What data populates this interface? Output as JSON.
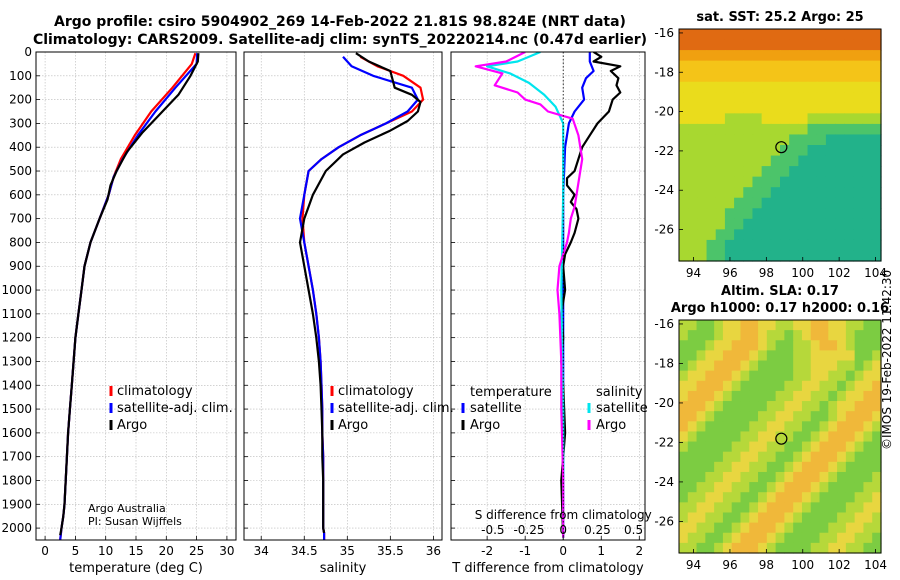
{
  "titles": {
    "line1": "Argo profile: csiro 5904902_269 14-Feb-2022 21.81S 98.824E (NRT data)",
    "line2": "Climatology: CARS2009. Satellite-adj clim: synTS_20220214.nc (0.47d earlier)"
  },
  "colors": {
    "climatology": "#ff0000",
    "satellite": "#0000ff",
    "argo": "#000000",
    "salinity_satellite": "#00e5ee",
    "salinity_argo": "#ff00ff",
    "grid": "#b8b8b8"
  },
  "credits": {
    "line1": "Argo Australia",
    "line2": "PI: Susan Wijffels"
  },
  "timestamp": "©IMOS 19-Feb-2022 11:42:30",
  "chart_data": [
    {
      "type": "line",
      "name": "temperature-profile",
      "xlabel": "temperature (deg C)",
      "xlim": [
        -1.5,
        31.5
      ],
      "ylim": [
        0,
        2050
      ],
      "y_reversed": true,
      "xticks": [
        0,
        5,
        10,
        15,
        20,
        25,
        30
      ],
      "yticks": [
        0,
        100,
        200,
        300,
        400,
        500,
        600,
        700,
        800,
        900,
        1000,
        1100,
        1200,
        1300,
        1400,
        1500,
        1600,
        1700,
        1800,
        1900,
        2000
      ],
      "legend": [
        "climatology",
        "satellite-adj. clim.",
        "Argo"
      ],
      "series": [
        {
          "name": "climatology",
          "color_key": "climatology",
          "x": [
            24.8,
            24.2,
            21.0,
            17.5,
            14.8,
            12.5,
            11.3,
            10.5,
            9.0,
            7.5,
            6.5,
            6.0,
            5.5,
            5.0,
            4.7,
            4.4,
            4.1,
            3.8,
            3.6,
            3.4,
            3.2,
            3.0,
            2.7,
            2.5
          ],
          "y": [
            5,
            50,
            150,
            250,
            350,
            450,
            525,
            600,
            700,
            800,
            900,
            1000,
            1100,
            1200,
            1300,
            1400,
            1500,
            1600,
            1700,
            1800,
            1900,
            1950,
            2000,
            2050
          ]
        },
        {
          "name": "satellite-adj. clim.",
          "color_key": "satellite",
          "x": [
            25.1,
            25.0,
            21.5,
            18.2,
            15.3,
            12.8,
            11.3,
            10.5,
            9.0,
            7.5,
            6.5,
            6.0,
            5.5,
            5.0,
            4.7,
            4.4,
            4.1,
            3.8,
            3.6,
            3.4,
            3.2,
            3.0,
            2.7,
            2.5
          ],
          "y": [
            5,
            50,
            150,
            250,
            350,
            450,
            525,
            600,
            700,
            800,
            900,
            1000,
            1100,
            1200,
            1300,
            1400,
            1500,
            1600,
            1700,
            1800,
            1900,
            1950,
            2000,
            2050
          ]
        },
        {
          "name": "Argo",
          "color_key": "argo",
          "x": [
            25.3,
            25.2,
            24.0,
            22.0,
            19.0,
            16.0,
            13.5,
            11.8,
            10.8,
            10.3,
            9.0,
            7.5,
            6.5,
            6.0,
            5.5,
            5.0,
            4.7,
            4.4,
            4.1,
            3.8,
            3.6,
            3.4,
            3.2,
            3.0,
            2.7,
            2.5
          ],
          "y": [
            5,
            40,
            100,
            180,
            260,
            340,
            420,
            500,
            560,
            620,
            700,
            800,
            900,
            1000,
            1100,
            1200,
            1300,
            1400,
            1500,
            1600,
            1700,
            1800,
            1900,
            1950,
            2000,
            2030
          ]
        }
      ]
    },
    {
      "type": "line",
      "name": "salinity-profile",
      "xlabel": "salinity",
      "xlim": [
        33.8,
        36.1
      ],
      "ylim": [
        0,
        2050
      ],
      "y_reversed": true,
      "xticks": [
        34,
        34.5,
        35,
        35.5,
        36
      ],
      "legend": [
        "climatology",
        "satellite-adj. clim.",
        "Argo"
      ],
      "series": [
        {
          "name": "climatology",
          "color_key": "climatology",
          "x": [
            35.15,
            35.35,
            35.65,
            35.85,
            35.88,
            35.75,
            35.45,
            35.15,
            34.9,
            34.7,
            34.55,
            34.5,
            34.48,
            34.5,
            34.55,
            34.6,
            34.64,
            34.67,
            34.69,
            34.7,
            34.71,
            34.71,
            34.72,
            34.72,
            34.72,
            34.72,
            34.72,
            34.73,
            34.73
          ],
          "y": [
            20,
            60,
            100,
            150,
            200,
            250,
            300,
            350,
            400,
            450,
            500,
            600,
            700,
            800,
            900,
            1000,
            1100,
            1200,
            1300,
            1400,
            1500,
            1600,
            1700,
            1800,
            1900,
            1950,
            2000,
            2020,
            2050
          ]
        },
        {
          "name": "satellite-adj. clim.",
          "color_key": "satellite",
          "x": [
            34.95,
            35.05,
            35.3,
            35.75,
            35.82,
            35.7,
            35.45,
            35.15,
            34.9,
            34.7,
            34.55,
            34.5,
            34.45,
            34.5,
            34.55,
            34.6,
            34.64,
            34.67,
            34.69,
            34.7,
            34.71,
            34.71,
            34.72,
            34.72,
            34.72,
            34.72,
            34.72,
            34.73,
            34.73
          ],
          "y": [
            20,
            60,
            100,
            150,
            200,
            250,
            300,
            350,
            400,
            450,
            500,
            600,
            700,
            800,
            900,
            1000,
            1100,
            1200,
            1300,
            1400,
            1500,
            1600,
            1700,
            1800,
            1900,
            1950,
            2000,
            2020,
            2050
          ]
        },
        {
          "name": "Argo",
          "color_key": "argo",
          "x": [
            35.1,
            35.25,
            35.5,
            35.55,
            35.75,
            35.85,
            35.82,
            35.7,
            35.5,
            35.2,
            34.95,
            34.75,
            34.6,
            34.5,
            34.45,
            34.5,
            34.55,
            34.6,
            34.64,
            34.67,
            34.69,
            34.7,
            34.71,
            34.71,
            34.72,
            34.72,
            34.72,
            34.72,
            34.73
          ],
          "y": [
            5,
            40,
            80,
            150,
            180,
            210,
            250,
            290,
            330,
            380,
            430,
            500,
            600,
            700,
            800,
            900,
            1000,
            1100,
            1200,
            1300,
            1400,
            1500,
            1600,
            1700,
            1800,
            1900,
            1950,
            2000,
            2020
          ]
        }
      ]
    },
    {
      "type": "line",
      "name": "difference-profile",
      "xlabel": "T difference from climatology",
      "xlabel_top": "S difference from climatology",
      "xlim": [
        -2.95,
        2.15
      ],
      "ylim": [
        0,
        2050
      ],
      "y_reversed": true,
      "xticks": [
        -2,
        -1,
        0,
        1,
        2
      ],
      "s_ticks": [
        "-0.5",
        "-0.25",
        "0",
        "0.25",
        "0.5"
      ],
      "s_tick_positions": [
        -1.85,
        -0.9,
        0,
        0.9,
        1.85
      ],
      "legend_groups": [
        {
          "header": "temperature",
          "items": [
            "satellite",
            "Argo"
          ]
        },
        {
          "header": "salinity",
          "items": [
            "satellite",
            "Argo"
          ]
        }
      ],
      "series": [
        {
          "name": "temperature satellite",
          "color_key": "satellite",
          "x": [
            0.7,
            0.7,
            0.8,
            0.6,
            0.5,
            0.55,
            0.3,
            0.15,
            0.05,
            0.0,
            0.0,
            0.0,
            0.0
          ],
          "y": [
            0,
            40,
            80,
            110,
            150,
            200,
            250,
            300,
            400,
            600,
            1000,
            1500,
            2040
          ]
        },
        {
          "name": "temperature Argo",
          "color_key": "argo",
          "x": [
            0.8,
            1.0,
            0.8,
            1.5,
            1.25,
            1.45,
            1.4,
            1.5,
            1.3,
            1.2,
            0.9,
            0.7,
            0.5,
            0.4,
            0.3,
            0.1,
            0.1,
            0.3,
            0.2,
            0.35,
            0.4,
            0.3,
            0.2,
            0.05,
            0.0,
            0.05,
            -0.05,
            0.0,
            -0.05,
            0.0,
            0.05,
            -0.05,
            0.0
          ],
          "y": [
            0,
            20,
            40,
            60,
            80,
            110,
            140,
            170,
            200,
            250,
            300,
            350,
            400,
            450,
            500,
            530,
            560,
            600,
            630,
            660,
            700,
            760,
            800,
            850,
            900,
            1000,
            1100,
            1200,
            1300,
            1400,
            1600,
            1800,
            2040
          ]
        },
        {
          "name": "salinity satellite",
          "color_key": "salinity_satellite",
          "x": [
            -0.6,
            -1.2,
            -2.0,
            -1.4,
            -0.9,
            -0.5,
            -0.2,
            0.0,
            0.0,
            0.0,
            -0.05,
            0.0,
            0.0,
            0.0
          ],
          "y": [
            0,
            40,
            60,
            90,
            130,
            180,
            230,
            300,
            400,
            600,
            1000,
            1500,
            1900,
            2040
          ]
        },
        {
          "name": "salinity Argo",
          "color_key": "salinity_argo",
          "x": [
            -1.0,
            -1.5,
            -2.3,
            -1.6,
            -1.8,
            -1.2,
            -1.0,
            -0.6,
            -0.4,
            0.25,
            0.4,
            0.5,
            0.4,
            0.3,
            0.2,
            0.15,
            0.1,
            -0.1,
            -0.15,
            -0.1,
            -0.05,
            -0.05,
            0.0,
            0.0
          ],
          "y": [
            0,
            40,
            60,
            90,
            140,
            170,
            200,
            220,
            250,
            280,
            350,
            450,
            550,
            650,
            700,
            760,
            800,
            900,
            1000,
            1100,
            1300,
            1500,
            1800,
            2040
          ]
        }
      ]
    },
    {
      "type": "heatmap",
      "name": "sst-map",
      "title": "sat. SST: 25.2 Argo: 25",
      "xlim": [
        93.2,
        104.3
      ],
      "ylim": [
        -27.6,
        -15.8
      ],
      "xticks": [
        94,
        96,
        98,
        100,
        102,
        104
      ],
      "yticks": [
        -16,
        -18,
        -20,
        -22,
        -24,
        -26
      ],
      "marker": {
        "lon": 98.824,
        "lat": -21.81
      },
      "rows": [
        "0000000000000000000000",
        "0000000000000000000000",
        "1111111111111111111111",
        "2222222222222222222222",
        "2222222222222222222222",
        "3333333333333333333333",
        "3333333333333333333333",
        "3333333333333333333333",
        "3333344443333344444444",
        "4444444444444455555555",
        "4444444444445555666666",
        "4444444444455566666666",
        "4444444444555666666666",
        "4444444445556666666666",
        "4444444455566666666666",
        "4444444555666666666666",
        "4444445556666666666666",
        "4444455566666666666666",
        "4444455666666666666666",
        "4444556666666666666666",
        "4445566666666666666666",
        "4445566666666666666666"
      ]
    },
    {
      "type": "heatmap",
      "name": "sla-map",
      "title_line1": "Altim. SLA: 0.17",
      "title_line2": "Argo h1000: 0.17 h2000: 0.16",
      "xlim": [
        93.2,
        104.3
      ],
      "ylim": [
        -27.6,
        -15.8
      ],
      "xticks": [
        94,
        96,
        98,
        100,
        102,
        104
      ],
      "yticks": [
        -16,
        -18,
        -20,
        -22,
        -24,
        -26
      ],
      "marker": {
        "lon": 98.824,
        "lat": -21.81
      },
      "rows": [
        "44554332233443322334455",
        "45554332234454322334555",
        "55543322234554432234555",
        "55433222345554433333554",
        "54332223455554433344543",
        "43322234555554433445433",
        "33222345555544334454332",
        "32223455555443344543322",
        "22234555554433445433222",
        "22345555544334455432223",
        "23455555443344554322234",
        "34555554433445543222345",
        "45555544334455432223455",
        "55555443344554322234555",
        "55554433445543222345555",
        "55544334455432223455554",
        "55443344554322234555544",
        "54433445543222345555443",
        "44334455432223455554433",
        "43344554322234555544334",
        "33445543222345555443344",
        "34455432223455554433445",
        "44554322234555544334455"
      ]
    }
  ]
}
